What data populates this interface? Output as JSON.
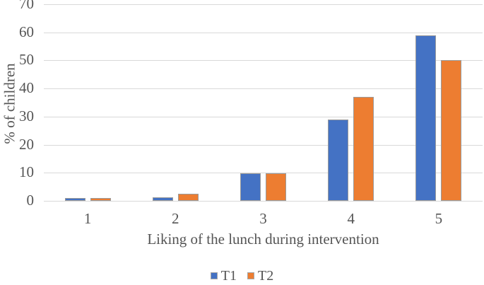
{
  "chart_data": {
    "type": "bar",
    "title": "",
    "categories": [
      "1",
      "2",
      "3",
      "4",
      "5"
    ],
    "series": [
      {
        "name": "T1",
        "color": "#4472C4",
        "values": [
          1,
          1.2,
          9.7,
          29,
          59
        ]
      },
      {
        "name": "T2",
        "color": "#ED7D31",
        "values": [
          1,
          2.5,
          9.7,
          37,
          50
        ]
      }
    ],
    "xlabel": "Liking of the lunch during intervention",
    "ylabel": "% of children",
    "ylim": [
      0,
      70
    ],
    "yticks": [
      0,
      10,
      20,
      30,
      40,
      50,
      60,
      70
    ],
    "grid": true,
    "gridline_color": "#d9d9d9",
    "bar_border_color": "#9b9b9b",
    "text_color": "#555555",
    "legend_position": "bottom",
    "legend_entries": [
      "T1",
      "T2"
    ]
  }
}
